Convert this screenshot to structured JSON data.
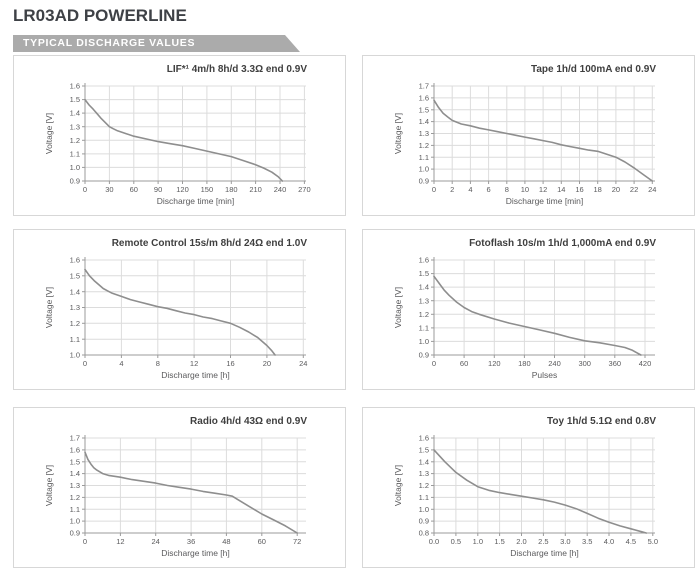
{
  "header": {
    "title": "LR03AD POWERLINE",
    "banner": "TYPICAL DISCHARGE VALUES"
  },
  "colors": {
    "banner_bg": "#ababab",
    "banner_text": "#ffffff",
    "headline_text": "#3e4146",
    "panel_border": "#d7d7d7",
    "curve": "#8e8e8e",
    "grid": "#dcdcdc",
    "axis": "#9b9b9b",
    "tick_text": "#5a5a5c"
  },
  "chart_data": [
    {
      "type": "line",
      "id": "lif",
      "title": "LIF*¹ 4m/h 8h/d 3.3Ω end 0.9V",
      "xlabel": "Discharge time [min]",
      "ylabel": "Voltage [V]",
      "xlim": [
        0,
        272
      ],
      "ylim": [
        0.9,
        1.6
      ],
      "grid": true,
      "xticks": [
        "0",
        "30",
        "60",
        "90",
        "120",
        "150",
        "180",
        "210",
        "240",
        "270"
      ],
      "yticks": [
        "0.9",
        "1.0",
        "1.1",
        "1.2",
        "1.3",
        "1.4",
        "1.5",
        "1.6"
      ],
      "x": [
        0,
        5,
        10,
        15,
        20,
        25,
        30,
        35,
        40,
        50,
        60,
        75,
        90,
        105,
        120,
        135,
        150,
        165,
        180,
        195,
        210,
        220,
        230,
        238,
        243
      ],
      "y": [
        1.5,
        1.46,
        1.43,
        1.395,
        1.36,
        1.33,
        1.3,
        1.285,
        1.27,
        1.25,
        1.23,
        1.21,
        1.19,
        1.175,
        1.16,
        1.14,
        1.12,
        1.1,
        1.08,
        1.05,
        1.02,
        0.995,
        0.965,
        0.93,
        0.9
      ]
    },
    {
      "type": "line",
      "id": "tape",
      "title": "Tape 1h/d 100mA end 0.9V",
      "xlabel": "Discharge time [min]",
      "ylabel": "Voltage [V]",
      "xlim": [
        0,
        24.3
      ],
      "ylim": [
        0.9,
        1.7
      ],
      "grid": true,
      "xticks": [
        "0",
        "2",
        "4",
        "6",
        "8",
        "10",
        "12",
        "14",
        "16",
        "18",
        "20",
        "22",
        "24"
      ],
      "yticks": [
        "0.9",
        "1.0",
        "1.1",
        "1.2",
        "1.3",
        "1.4",
        "1.5",
        "1.6",
        "1.7"
      ],
      "x": [
        0,
        0.5,
        1,
        1.5,
        2,
        3,
        4,
        5,
        6,
        7,
        8,
        9,
        10,
        11,
        12,
        13,
        14,
        15,
        16,
        17,
        18,
        19,
        20,
        21,
        22,
        23,
        24
      ],
      "y": [
        1.58,
        1.52,
        1.47,
        1.44,
        1.41,
        1.38,
        1.365,
        1.345,
        1.33,
        1.315,
        1.3,
        1.285,
        1.27,
        1.255,
        1.24,
        1.225,
        1.205,
        1.19,
        1.175,
        1.16,
        1.15,
        1.125,
        1.1,
        1.06,
        1.01,
        0.955,
        0.9
      ]
    },
    {
      "type": "line",
      "id": "remote-control",
      "title": "Remote Control 15s/m 8h/d 24Ω end 1.0V",
      "xlabel": "Discharge time [h]",
      "ylabel": "Voltage [V]",
      "xlim": [
        0,
        24.3
      ],
      "ylim": [
        1.0,
        1.6
      ],
      "grid": true,
      "xticks": [
        "0",
        "4",
        "8",
        "12",
        "16",
        "20",
        "24"
      ],
      "yticks": [
        "1.0",
        "1.1",
        "1.2",
        "1.3",
        "1.4",
        "1.5",
        "1.6"
      ],
      "x": [
        0,
        0.5,
        1,
        1.5,
        2,
        2.5,
        3,
        4,
        5,
        6,
        7,
        8,
        9,
        10,
        11,
        12,
        13,
        14,
        15,
        16,
        17,
        18,
        19,
        20,
        20.5,
        20.9
      ],
      "y": [
        1.54,
        1.5,
        1.47,
        1.445,
        1.42,
        1.405,
        1.39,
        1.37,
        1.35,
        1.335,
        1.32,
        1.305,
        1.295,
        1.28,
        1.265,
        1.255,
        1.24,
        1.23,
        1.215,
        1.2,
        1.175,
        1.145,
        1.11,
        1.06,
        1.03,
        1.0
      ]
    },
    {
      "type": "line",
      "id": "fotoflash",
      "title": "Fotoflash 10s/m 1h/d 1,000mA end 0.9V",
      "xlabel": "Pulses",
      "ylabel": "Voltage [V]",
      "xlim": [
        0,
        440
      ],
      "ylim": [
        0.9,
        1.6
      ],
      "grid": true,
      "xticks": [
        "0",
        "60",
        "120",
        "180",
        "240",
        "300",
        "360",
        "420"
      ],
      "yticks": [
        "0.9",
        "1.0",
        "1.1",
        "1.2",
        "1.3",
        "1.4",
        "1.5",
        "1.6"
      ],
      "x": [
        0,
        10,
        20,
        30,
        45,
        60,
        75,
        90,
        120,
        150,
        180,
        210,
        240,
        270,
        300,
        330,
        360,
        380,
        395,
        412
      ],
      "y": [
        1.48,
        1.43,
        1.38,
        1.34,
        1.29,
        1.25,
        1.22,
        1.2,
        1.165,
        1.135,
        1.11,
        1.085,
        1.06,
        1.03,
        1.005,
        0.99,
        0.97,
        0.955,
        0.935,
        0.9
      ]
    },
    {
      "type": "line",
      "id": "radio",
      "title": "Radio 4h/d 43Ω end 0.9V",
      "xlabel": "Discharge time [h]",
      "ylabel": "Voltage [V]",
      "xlim": [
        0,
        75
      ],
      "ylim": [
        0.9,
        1.7
      ],
      "grid": true,
      "xticks": [
        "0",
        "12",
        "24",
        "36",
        "48",
        "60",
        "72"
      ],
      "yticks": [
        "0.9",
        "1.0",
        "1.1",
        "1.2",
        "1.3",
        "1.4",
        "1.5",
        "1.6",
        "1.7"
      ],
      "x": [
        0,
        1,
        2,
        3,
        4,
        6,
        8,
        12,
        16,
        20,
        24,
        28,
        32,
        36,
        40,
        44,
        48,
        50,
        52,
        56,
        60,
        64,
        68,
        72
      ],
      "y": [
        1.58,
        1.52,
        1.48,
        1.45,
        1.43,
        1.4,
        1.385,
        1.37,
        1.35,
        1.335,
        1.32,
        1.3,
        1.285,
        1.27,
        1.25,
        1.235,
        1.22,
        1.21,
        1.18,
        1.12,
        1.06,
        1.01,
        0.96,
        0.9
      ]
    },
    {
      "type": "line",
      "id": "toy",
      "title": "Toy 1h/d 5.1Ω end 0.8V",
      "xlabel": "Discharge time [h]",
      "ylabel": "Voltage [V]",
      "xlim": [
        0,
        5.05
      ],
      "ylim": [
        0.8,
        1.6
      ],
      "grid": true,
      "xticks": [
        "0.0",
        "0.5",
        "1.0",
        "1.5",
        "2.0",
        "2.5",
        "3.0",
        "3.5",
        "4.0",
        "4.5",
        "5.0"
      ],
      "yticks": [
        "0.8",
        "0.9",
        "1.0",
        "1.1",
        "1.2",
        "1.3",
        "1.4",
        "1.5",
        "1.6"
      ],
      "x": [
        0,
        0.25,
        0.5,
        0.75,
        1.0,
        1.25,
        1.5,
        1.75,
        2.0,
        2.25,
        2.5,
        2.75,
        3.0,
        3.25,
        3.5,
        3.75,
        4.0,
        4.25,
        4.5,
        4.75,
        4.85
      ],
      "y": [
        1.5,
        1.4,
        1.31,
        1.245,
        1.19,
        1.16,
        1.14,
        1.125,
        1.11,
        1.095,
        1.08,
        1.06,
        1.035,
        1.005,
        0.965,
        0.925,
        0.89,
        0.86,
        0.835,
        0.81,
        0.8
      ]
    }
  ]
}
